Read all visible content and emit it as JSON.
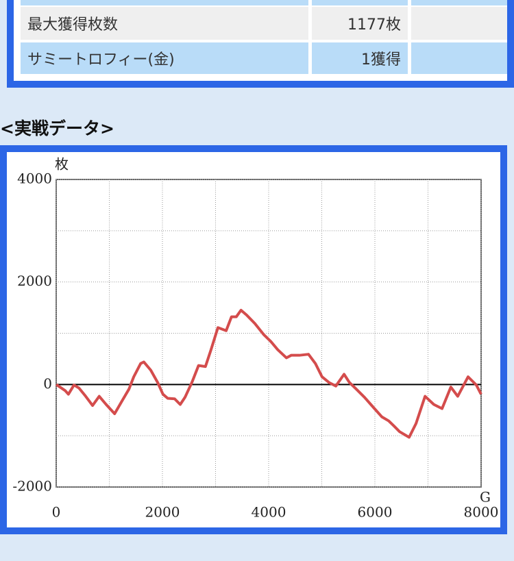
{
  "table": {
    "rows": [
      [
        "最大獲得枚数",
        "1177枚"
      ],
      [
        "サミートロフィー(金)",
        "1獲得"
      ]
    ]
  },
  "section": {
    "heading": "<実戦データ>"
  },
  "chart_data": {
    "type": "line",
    "color": "#d44c4c",
    "y_label": "枚",
    "x_label": "G",
    "xlim": [
      0,
      8000
    ],
    "ylim": [
      -2000,
      4000
    ],
    "xticks": [
      0,
      2000,
      4000,
      6000,
      8000
    ],
    "yticks": [
      -2000,
      0,
      2000,
      4000
    ],
    "xminor": [
      1000,
      3000,
      5000,
      7000
    ],
    "yminor": [
      -1000,
      1000,
      3000
    ],
    "grid": true,
    "zero_line": true,
    "x": [
      0,
      170,
      230,
      335,
      430,
      555,
      685,
      810,
      940,
      1100,
      1240,
      1370,
      1460,
      1590,
      1650,
      1780,
      1910,
      2010,
      2100,
      2230,
      2335,
      2425,
      2555,
      2680,
      2810,
      2915,
      3045,
      3200,
      3300,
      3390,
      3480,
      3590,
      3740,
      3910,
      4040,
      4170,
      4335,
      4425,
      4580,
      4750,
      4880,
      5005,
      5135,
      5265,
      5420,
      5520,
      5650,
      5805,
      5975,
      6130,
      6260,
      6360,
      6465,
      6645,
      6775,
      6945,
      7110,
      7265,
      7430,
      7560,
      7755,
      7910,
      8000
    ],
    "values": [
      0,
      -120,
      -190,
      -10,
      -70,
      -230,
      -410,
      -230,
      -390,
      -570,
      -320,
      -90,
      150,
      410,
      440,
      280,
      40,
      -190,
      -270,
      -280,
      -390,
      -250,
      40,
      370,
      350,
      680,
      1110,
      1050,
      1320,
      1320,
      1450,
      1350,
      1190,
      970,
      840,
      680,
      520,
      570,
      570,
      590,
      410,
      150,
      40,
      -30,
      200,
      40,
      -90,
      -250,
      -450,
      -630,
      -710,
      -810,
      -920,
      -1030,
      -760,
      -230,
      -390,
      -470,
      -50,
      -230,
      150,
      -10,
      -190
    ]
  }
}
